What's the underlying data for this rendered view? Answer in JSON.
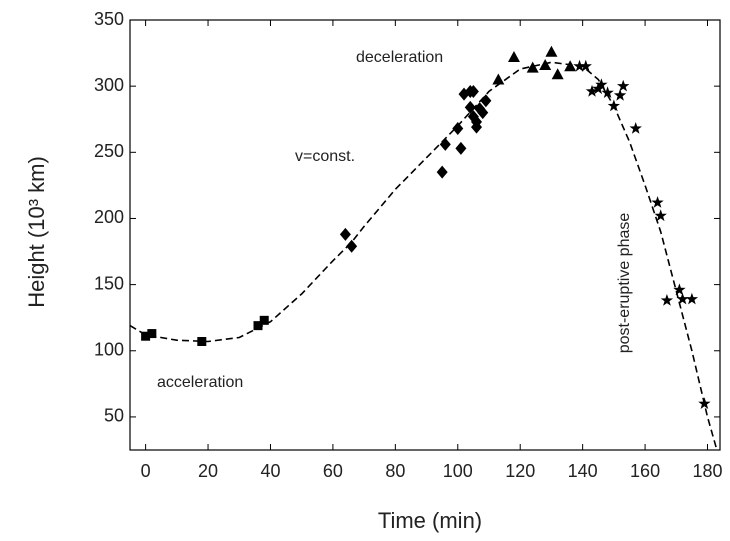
{
  "chart_data": {
    "type": "scatter",
    "xlabel": "Time (min)",
    "ylabel": "Height (10³ km)",
    "xlim": [
      -5,
      184
    ],
    "ylim": [
      25,
      350
    ],
    "xticks": [
      0,
      20,
      40,
      60,
      80,
      100,
      120,
      140,
      160,
      180
    ],
    "yticks": [
      50,
      100,
      150,
      200,
      250,
      300,
      350
    ],
    "annotations": [
      "acceleration",
      "v=const.",
      "deceleration",
      "post-eruptive phase"
    ],
    "series": [
      {
        "marker": "square",
        "color": "#000000",
        "x": [
          0,
          2,
          18,
          36,
          38
        ],
        "values": [
          111,
          113,
          107,
          119,
          123
        ]
      },
      {
        "marker": "diamond",
        "color": "#000000",
        "x": [
          64,
          66,
          95,
          96,
          100,
          101,
          102,
          104,
          104,
          105,
          105,
          106,
          106,
          107,
          108,
          109
        ],
        "values": [
          188,
          179,
          235,
          256,
          268,
          253,
          294,
          296,
          284,
          296,
          277,
          273,
          269,
          283,
          280,
          289
        ]
      },
      {
        "marker": "triangle",
        "color": "#000000",
        "x": [
          113,
          118,
          124,
          128,
          130,
          132,
          136
        ],
        "values": [
          305,
          322,
          314,
          316,
          326,
          309,
          315
        ]
      },
      {
        "marker": "star",
        "color": "#000000",
        "x": [
          139,
          141,
          143,
          145,
          146,
          148,
          150,
          152,
          153,
          157,
          164,
          165,
          167,
          171,
          172,
          175,
          179
        ],
        "values": [
          315,
          315,
          296,
          298,
          301,
          295,
          285,
          293,
          300,
          268,
          212,
          202,
          138,
          146,
          139,
          139,
          60
        ]
      }
    ],
    "fit": {
      "color": "#000000",
      "x": [
        -5,
        0,
        10,
        20,
        30,
        40,
        50,
        60,
        66,
        70,
        80,
        90,
        100,
        110,
        120,
        130,
        140,
        145,
        150,
        155,
        160,
        165,
        170,
        175,
        180,
        183
      ],
      "values": [
        119,
        112,
        108,
        107,
        110,
        122,
        143,
        168,
        182,
        194,
        222,
        246,
        270,
        296,
        313,
        318,
        315,
        305,
        285,
        258,
        225,
        190,
        145,
        100,
        50,
        25
      ]
    }
  }
}
